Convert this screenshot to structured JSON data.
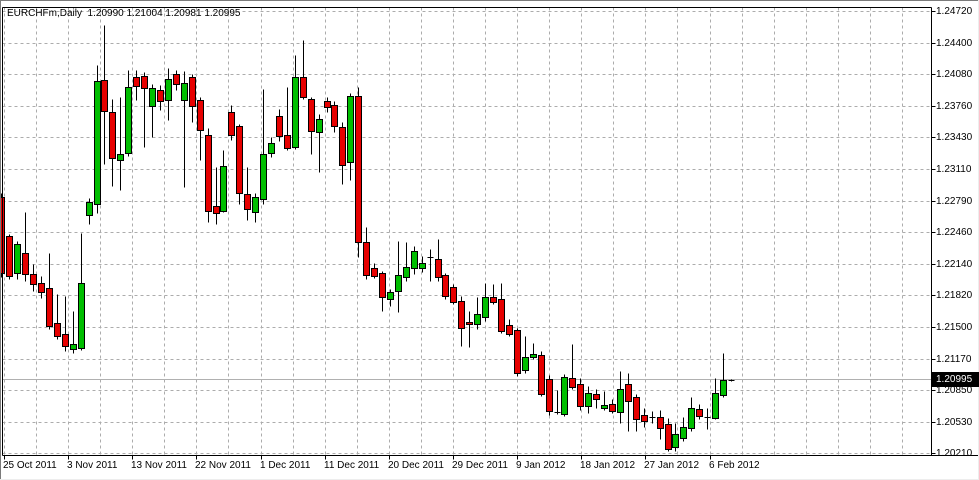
{
  "header": {
    "symbol": "EURCHFm",
    "period": "Daily",
    "open": "1.20990",
    "high": "1.21004",
    "low": "1.20981",
    "close": "1.20995",
    "title_line": "EURCHFm,Daily  1.20990 1.21004 1.20981 1.20995"
  },
  "price_scale": {
    "labels": [
      "1.24720",
      "1.24400",
      "1.24080",
      "1.23760",
      "1.23430",
      "1.23110",
      "1.22790",
      "1.22460",
      "1.22140",
      "1.21820",
      "1.21500",
      "1.21170",
      "1.20850",
      "1.20530",
      "1.20210"
    ],
    "current_price_label": "1.20995"
  },
  "time_scale": {
    "labels": [
      "25 Oct 2011",
      "3 Nov 2011",
      "13 Nov 2011",
      "22 Nov 2011",
      "1 Dec 2011",
      "11 Dec 2011",
      "20 Dec 2011",
      "29 Dec 2011",
      "9 Jan 2012",
      "18 Jan 2012",
      "27 Jan 2012",
      "6 Feb 2012"
    ]
  },
  "colors": {
    "bull": "#00BE00",
    "bear": "#E60000",
    "outline": "#000000",
    "wick": "#000000",
    "grid": "#ACACAC",
    "price_line": "#B0B0B0",
    "frame": "#000000",
    "price_box_bg": "#000000",
    "price_box_text": "#FFFFFF",
    "background": "#FFFFFF",
    "window_edge_dark": "#7B7B7B",
    "window_edge_light": "#EDEDED"
  },
  "chart_data": {
    "type": "candlestick",
    "symbol": "EURCHFm",
    "timeframe": "Daily",
    "title": "EURCHFm,Daily",
    "current_price": 1.20995,
    "current_bar_ohlc": {
      "open": 1.2099,
      "high": 1.21004,
      "low": 1.20981,
      "close": 1.20995
    },
    "y_axis": {
      "side": "right",
      "labels": [
        1.2472,
        1.244,
        1.2408,
        1.2376,
        1.2343,
        1.2311,
        1.2279,
        1.2246,
        1.2214,
        1.2182,
        1.215,
        1.2117,
        1.2085,
        1.2053,
        1.2021
      ]
    },
    "x_axis": {
      "labels": [
        "25 Oct 2011",
        "3 Nov 2011",
        "13 Nov 2011",
        "22 Nov 2011",
        "1 Dec 2011",
        "11 Dec 2011",
        "20 Dec 2011",
        "29 Dec 2011",
        "9 Jan 2012",
        "18 Jan 2012",
        "27 Jan 2012",
        "6 Feb 2012"
      ]
    },
    "grid": true,
    "candles_ohlc": [
      [
        1.22835,
        1.22876,
        1.22034,
        1.22065
      ],
      [
        1.2244,
        1.2247,
        1.22014,
        1.22034
      ],
      [
        1.22075,
        1.22399,
        1.22014,
        1.22369
      ],
      [
        1.22278,
        1.22683,
        1.21994,
        1.22065
      ],
      [
        1.22065,
        1.22166,
        1.21892,
        1.21963
      ],
      [
        1.21973,
        1.22044,
        1.21821,
        1.21882
      ],
      [
        1.21923,
        1.22278,
        1.21507,
        1.21537
      ],
      [
        1.21568,
        1.21862,
        1.21406,
        1.21436
      ],
      [
        1.21456,
        1.21841,
        1.21284,
        1.21335
      ],
      [
        1.21299,
        1.2169,
        1.21264,
        1.2135
      ],
      [
        1.21314,
        1.2248,
        1.21294,
        1.21973
      ],
      [
        1.22652,
        1.22825,
        1.22571,
        1.22784
      ],
      [
        1.22774,
        1.24176,
        1.22673,
        1.24015
      ],
      [
        1.24018,
        1.24581,
        1.23176,
        1.23703
      ],
      [
        1.23703,
        1.23828,
        1.22946,
        1.2324
      ],
      [
        1.2321,
        1.23848,
        1.22906,
        1.23271
      ],
      [
        1.23278,
        1.24119,
        1.2325,
        1.2395
      ],
      [
        1.24048,
        1.24122,
        1.23818,
        1.23953
      ],
      [
        1.24058,
        1.24102,
        1.23349,
        1.2394
      ],
      [
        1.23754,
        1.2398,
        1.2345,
        1.2394
      ],
      [
        1.23922,
        1.2397,
        1.23715,
        1.23811
      ],
      [
        1.23821,
        1.24143,
        1.23618,
        1.24034
      ],
      [
        1.24081,
        1.24125,
        1.23922,
        1.2398
      ],
      [
        1.23821,
        1.24109,
        1.22936,
        1.23991
      ],
      [
        1.24048,
        1.24081,
        1.23602,
        1.23754
      ],
      [
        1.23818,
        1.23851,
        1.2321,
        1.23514
      ],
      [
        1.2347,
        1.23541,
        1.22585,
        1.22703
      ],
      [
        1.22747,
        1.23142,
        1.22568,
        1.2268
      ],
      [
        1.22696,
        1.23311,
        1.22683,
        1.23149
      ],
      [
        1.23696,
        1.23767,
        1.23413,
        1.23463
      ],
      [
        1.23554,
        1.23582,
        1.22771,
        1.22872
      ],
      [
        1.22872,
        1.23139,
        1.22602,
        1.2272
      ],
      [
        1.22686,
        1.22876,
        1.22585,
        1.22838
      ],
      [
        1.22821,
        1.23935,
        1.22764,
        1.23278
      ],
      [
        1.23281,
        1.23446,
        1.2324,
        1.23382
      ],
      [
        1.23661,
        1.23732,
        1.23407,
        1.23463
      ],
      [
        1.23463,
        1.2395,
        1.23311,
        1.23331
      ],
      [
        1.23345,
        1.24274,
        1.23328,
        1.24054
      ],
      [
        1.24054,
        1.24426,
        1.23828,
        1.23851
      ],
      [
        1.23835,
        1.23851,
        1.23278,
        1.23514
      ],
      [
        1.23497,
        1.23683,
        1.23091,
        1.23632
      ],
      [
        1.23808,
        1.23851,
        1.23699,
        1.2375
      ],
      [
        1.23774,
        1.23808,
        1.23497,
        1.23565
      ],
      [
        1.23547,
        1.23595,
        1.22973,
        1.23159
      ],
      [
        1.23193,
        1.23889,
        1.23007,
        1.23859
      ],
      [
        1.23859,
        1.2395,
        1.2223,
        1.22382
      ],
      [
        1.22382,
        1.22534,
        1.22011,
        1.22044
      ],
      [
        1.22122,
        1.22176,
        1.22024,
        1.22044
      ],
      [
        1.22068,
        1.22095,
        1.2169,
        1.21824
      ],
      [
        1.21808,
        1.21912,
        1.2174,
        1.21875
      ],
      [
        1.21892,
        1.22399,
        1.21672,
        1.22051
      ],
      [
        1.22034,
        1.22382,
        1.21994,
        1.22136
      ],
      [
        1.22129,
        1.22348,
        1.22062,
        1.22298
      ],
      [
        1.22122,
        1.22247,
        1.22078,
        1.22173
      ],
      [
        1.2224,
        1.22315,
        1.21994,
        1.2223
      ],
      [
        1.22214,
        1.22416,
        1.21994,
        1.22027
      ],
      [
        1.22054,
        1.22075,
        1.21808,
        1.21841
      ],
      [
        1.21926,
        1.21963,
        1.21756,
        1.21774
      ],
      [
        1.21791,
        1.21841,
        1.21335,
        1.2152
      ],
      [
        1.21578,
        1.2169,
        1.21318,
        1.21561
      ],
      [
        1.21555,
        1.21831,
        1.21507,
        1.21656
      ],
      [
        1.21621,
        1.21973,
        1.21588,
        1.21824
      ],
      [
        1.21831,
        1.2196,
        1.2176,
        1.21784
      ],
      [
        1.21808,
        1.21966,
        1.2146,
        1.21487
      ],
      [
        1.21548,
        1.21605,
        1.21436,
        1.2146
      ],
      [
        1.21494,
        1.21517,
        1.21031,
        1.21064
      ],
      [
        1.21088,
        1.21436,
        1.21064,
        1.21223
      ],
      [
        1.21216,
        1.21368,
        1.21203,
        1.2125
      ],
      [
        1.21243,
        1.21284,
        1.20828,
        1.20845
      ],
      [
        1.21003,
        1.21041,
        1.20635,
        1.20676
      ],
      [
        1.20666,
        1.20889,
        1.20641,
        1.20656
      ],
      [
        1.20642,
        1.21051,
        1.20625,
        1.21021
      ],
      [
        1.21013,
        1.21358,
        1.20899,
        1.20919
      ],
      [
        1.20953,
        1.2101,
        1.20686,
        1.2073
      ],
      [
        1.20726,
        1.20929,
        1.20659,
        1.20855
      ],
      [
        1.20845,
        1.20899,
        1.20709,
        1.20794
      ],
      [
        1.20709,
        1.20879,
        1.20686,
        1.20737
      ],
      [
        1.2075,
        1.20797,
        1.20656,
        1.20676
      ],
      [
        1.20659,
        1.21081,
        1.20558,
        1.20896
      ],
      [
        1.20947,
        1.21064,
        1.20473,
        1.20777
      ],
      [
        1.20818,
        1.20848,
        1.20473,
        1.20592
      ],
      [
        1.20632,
        1.20709,
        1.20513,
        1.20575
      ],
      [
        1.2062,
        1.20676,
        1.20558,
        1.2061
      ],
      [
        1.20615,
        1.20683,
        1.20389,
        1.20507
      ],
      [
        1.20541,
        1.20608,
        1.20271,
        1.20288
      ],
      [
        1.20304,
        1.20558,
        1.20271,
        1.2044
      ],
      [
        1.20399,
        1.20615,
        1.20372,
        1.20513
      ],
      [
        1.20501,
        1.20818,
        1.20473,
        1.20703
      ],
      [
        1.20693,
        1.20744,
        1.20594,
        1.20625
      ],
      [
        1.20615,
        1.20703,
        1.20491,
        1.20618
      ],
      [
        1.20608,
        1.21007,
        1.20594,
        1.20861
      ],
      [
        1.20838,
        1.21264,
        1.20818,
        1.20987
      ],
      [
        1.2099,
        1.21004,
        1.20981,
        1.20995
      ]
    ]
  }
}
